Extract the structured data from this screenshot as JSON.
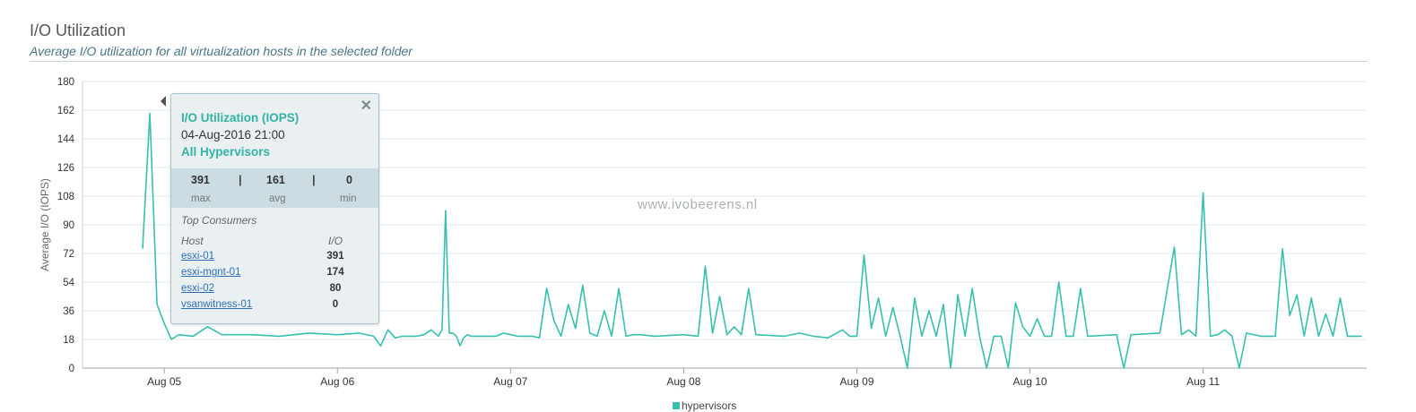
{
  "header": {
    "title": "I/O Utilization",
    "subtitle": "Average I/O utilization for all virtualization hosts in the selected folder"
  },
  "watermark": "www.ivobeerens.nl",
  "colors": {
    "series": "#37c0b0",
    "grid": "#e3e8ea",
    "accent": "#33b3a3"
  },
  "tooltip": {
    "title": "I/O Utilization (IOPS)",
    "timestamp": "04-Aug-2016 21:00",
    "group": "All Hypervisors",
    "close_icon": "close-icon",
    "stats": [
      {
        "value": "391",
        "label": "max"
      },
      {
        "value": "161",
        "label": "avg"
      },
      {
        "value": "0",
        "label": "min"
      }
    ],
    "separator": "|",
    "top_consumers_label": "Top Consumers",
    "col_host": "Host",
    "col_io": "I/O",
    "rows": [
      {
        "host": "esxi-01",
        "io": "391"
      },
      {
        "host": "esxi-mgnt-01",
        "io": "174"
      },
      {
        "host": "esxi-02",
        "io": "80"
      },
      {
        "host": "vsanwitness-01",
        "io": "0"
      }
    ]
  },
  "chart_data": {
    "type": "line",
    "title": "I/O Utilization",
    "ylabel": "Average I/O (IOPS)",
    "xlabel": "",
    "ylim": [
      0,
      180
    ],
    "yticks": [
      0,
      18,
      36,
      54,
      72,
      90,
      108,
      126,
      144,
      162,
      180
    ],
    "x_tick_labels": [
      "Aug 05",
      "Aug 06",
      "Aug 07",
      "Aug 08",
      "Aug 09",
      "Aug 10",
      "Aug 11"
    ],
    "x_tick_dates": [
      "2016-08-05",
      "2016-08-06",
      "2016-08-07",
      "2016-08-08",
      "2016-08-09",
      "2016-08-10",
      "2016-08-11"
    ],
    "xlim": [
      "2016-08-04 12:40",
      "2016-08-11 22:40"
    ],
    "grid": true,
    "legend_position": "bottom-center",
    "series": [
      {
        "name": "hypervisors",
        "points": [
          [
            "2016-08-04 21:00",
            75
          ],
          [
            "2016-08-04 22:00",
            160
          ],
          [
            "2016-08-04 23:00",
            40
          ],
          [
            "2016-08-05 00:00",
            28
          ],
          [
            "2016-08-05 01:00",
            18
          ],
          [
            "2016-08-05 02:00",
            21
          ],
          [
            "2016-08-05 04:00",
            20
          ],
          [
            "2016-08-05 06:00",
            26
          ],
          [
            "2016-08-05 08:00",
            21
          ],
          [
            "2016-08-05 12:00",
            21
          ],
          [
            "2016-08-05 16:00",
            20
          ],
          [
            "2016-08-05 20:00",
            22
          ],
          [
            "2016-08-06 00:00",
            21
          ],
          [
            "2016-08-06 03:00",
            22
          ],
          [
            "2016-08-06 05:00",
            20
          ],
          [
            "2016-08-06 06:00",
            14
          ],
          [
            "2016-08-06 07:00",
            24
          ],
          [
            "2016-08-06 09:00",
            20
          ],
          [
            "2016-08-06 12:00",
            21
          ],
          [
            "2016-08-06 13:00",
            24
          ],
          [
            "2016-08-06 14:00",
            20
          ],
          [
            "2016-08-06 15:00",
            99
          ],
          [
            "2016-08-06 16:00",
            22
          ],
          [
            "2016-08-06 17:00",
            14
          ],
          [
            "2016-08-06 18:00",
            21
          ],
          [
            "2016-08-06 20:00",
            20
          ],
          [
            "2016-08-07 00:00",
            21
          ],
          [
            "2016-08-06 22:00",
            20
          ],
          [
            "2016-08-07 01:00",
            20
          ],
          [
            "2016-08-07 02:00",
            20
          ],
          [
            "2016-08-06 21:00",
            20
          ],
          [
            "2016-08-06 23:00",
            22
          ],
          [
            "2016-08-07 03:00",
            20
          ],
          [
            "2016-08-06 19:00",
            20
          ],
          [
            "2016-08-06 18:30",
            20
          ],
          [
            "2016-08-06 17:30",
            19
          ],
          [
            "2016-08-06 16:30",
            20
          ],
          [
            "2016-08-06 15:30",
            22
          ],
          [
            "2016-08-06 14:30",
            24
          ],
          [
            "2016-08-06 11:00",
            20
          ],
          [
            "2016-08-06 10:00",
            20
          ],
          [
            "2016-08-06 08:00",
            19
          ],
          [
            "2016-08-07 04:00",
            19
          ],
          [
            "2016-08-07 05:00",
            50
          ],
          [
            "2016-08-07 06:00",
            30
          ],
          [
            "2016-08-07 07:00",
            20
          ],
          [
            "2016-08-07 08:00",
            40
          ],
          [
            "2016-08-07 09:00",
            25
          ],
          [
            "2016-08-07 10:00",
            52
          ],
          [
            "2016-08-07 11:00",
            22
          ],
          [
            "2016-08-07 12:00",
            20
          ],
          [
            "2016-08-07 13:00",
            36
          ],
          [
            "2016-08-07 14:00",
            20
          ],
          [
            "2016-08-07 15:00",
            50
          ],
          [
            "2016-08-07 16:00",
            20
          ],
          [
            "2016-08-07 17:00",
            21
          ],
          [
            "2016-08-07 18:00",
            21
          ],
          [
            "2016-08-07 20:00",
            20
          ],
          [
            "2016-08-08 00:00",
            21
          ],
          [
            "2016-08-08 02:00",
            20
          ],
          [
            "2016-08-08 03:00",
            64
          ],
          [
            "2016-08-08 04:00",
            22
          ],
          [
            "2016-08-08 05:00",
            45
          ],
          [
            "2016-08-08 06:00",
            21
          ],
          [
            "2016-08-08 07:00",
            26
          ],
          [
            "2016-08-08 08:00",
            21
          ],
          [
            "2016-08-08 09:00",
            50
          ],
          [
            "2016-08-08 10:00",
            21
          ],
          [
            "2016-08-08 14:00",
            20
          ],
          [
            "2016-08-08 16:00",
            22
          ],
          [
            "2016-08-08 18:00",
            20
          ],
          [
            "2016-08-08 20:00",
            19
          ],
          [
            "2016-08-08 22:00",
            24
          ],
          [
            "2016-08-08 23:00",
            20
          ],
          [
            "2016-08-09 00:00",
            20
          ],
          [
            "2016-08-09 01:00",
            71
          ],
          [
            "2016-08-09 02:00",
            25
          ],
          [
            "2016-08-09 03:00",
            44
          ],
          [
            "2016-08-09 04:00",
            20
          ],
          [
            "2016-08-09 05:00",
            38
          ],
          [
            "2016-08-09 06:00",
            20
          ],
          [
            "2016-08-09 07:00",
            0
          ],
          [
            "2016-08-09 08:00",
            44
          ],
          [
            "2016-08-09 09:00",
            20
          ],
          [
            "2016-08-09 10:00",
            36
          ],
          [
            "2016-08-09 11:00",
            20
          ],
          [
            "2016-08-09 12:00",
            40
          ],
          [
            "2016-08-09 13:00",
            0
          ],
          [
            "2016-08-09 14:00",
            46
          ],
          [
            "2016-08-09 15:00",
            20
          ],
          [
            "2016-08-09 16:00",
            50
          ],
          [
            "2016-08-09 17:00",
            20
          ],
          [
            "2016-08-09 18:00",
            0
          ],
          [
            "2016-08-09 19:00",
            20
          ],
          [
            "2016-08-09 20:00",
            20
          ],
          [
            "2016-08-09 21:00",
            0
          ],
          [
            "2016-08-09 22:00",
            41
          ],
          [
            "2016-08-09 23:00",
            26
          ],
          [
            "2016-08-10 00:00",
            20
          ],
          [
            "2016-08-10 01:00",
            31
          ],
          [
            "2016-08-10 02:00",
            20
          ],
          [
            "2016-08-10 03:00",
            20
          ],
          [
            "2016-08-10 04:00",
            54
          ],
          [
            "2016-08-10 05:00",
            20
          ],
          [
            "2016-08-10 06:00",
            20
          ],
          [
            "2016-08-10 07:00",
            50
          ],
          [
            "2016-08-10 08:00",
            20
          ],
          [
            "2016-08-10 12:00",
            21
          ],
          [
            "2016-08-10 13:00",
            0
          ],
          [
            "2016-08-10 14:00",
            21
          ],
          [
            "2016-08-10 18:00",
            22
          ],
          [
            "2016-08-10 20:00",
            76
          ],
          [
            "2016-08-10 21:00",
            21
          ],
          [
            "2016-08-10 22:00",
            24
          ],
          [
            "2016-08-10 23:00",
            20
          ],
          [
            "2016-08-11 00:00",
            110
          ],
          [
            "2016-08-11 01:00",
            20
          ],
          [
            "2016-08-11 02:00",
            21
          ],
          [
            "2016-08-11 03:00",
            24
          ],
          [
            "2016-08-11 04:00",
            20
          ],
          [
            "2016-08-11 05:00",
            0
          ],
          [
            "2016-08-11 06:00",
            22
          ],
          [
            "2016-08-11 08:00",
            20
          ],
          [
            "2016-08-11 10:00",
            20
          ],
          [
            "2016-08-11 11:00",
            75
          ],
          [
            "2016-08-11 12:00",
            33
          ],
          [
            "2016-08-11 13:00",
            46
          ],
          [
            "2016-08-11 14:00",
            20
          ],
          [
            "2016-08-11 15:00",
            44
          ],
          [
            "2016-08-11 16:00",
            20
          ],
          [
            "2016-08-11 17:00",
            34
          ],
          [
            "2016-08-11 18:00",
            20
          ],
          [
            "2016-08-11 19:00",
            44
          ],
          [
            "2016-08-11 20:00",
            20
          ],
          [
            "2016-08-11 22:00",
            20
          ]
        ]
      }
    ]
  },
  "legend": {
    "label": "hypervisors"
  }
}
